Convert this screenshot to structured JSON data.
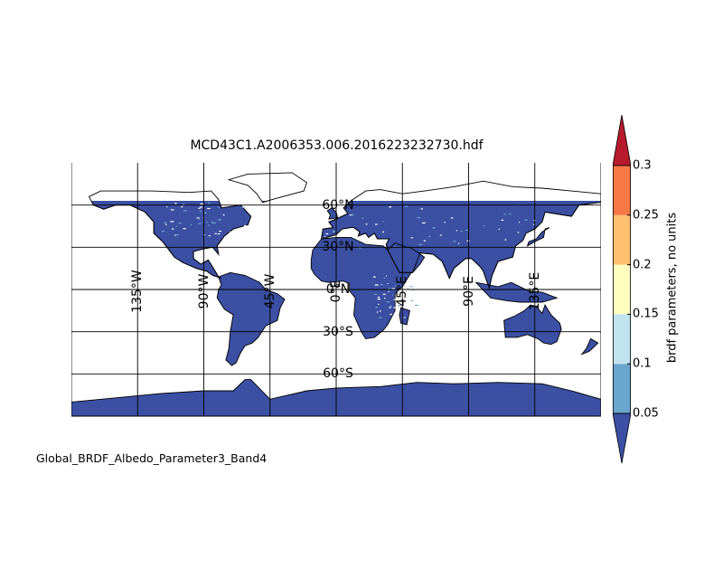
{
  "title": "MCD43C1.A2006353.006.2016223232730.hdf",
  "footer": "Global_BRDF_Albedo_Parameter3_Band4",
  "map": {
    "projection": "cylindrical",
    "lon_range": [
      -180,
      180
    ],
    "lat_range": [
      -90,
      90
    ],
    "land_fill_color": "#3b4fa3",
    "speckle_color": "#6fa6d0",
    "coastline_color": "#000000",
    "graticule_color": "#000000",
    "meridians": [
      {
        "lon": -135,
        "label": "135°W"
      },
      {
        "lon": -90,
        "label": "90°W"
      },
      {
        "lon": -45,
        "label": "45°W"
      },
      {
        "lon": 0,
        "label": "0°E"
      },
      {
        "lon": 45,
        "label": "45°E"
      },
      {
        "lon": 90,
        "label": "90°E"
      },
      {
        "lon": 135,
        "label": "135°E"
      }
    ],
    "parallels": [
      {
        "lat": 60,
        "label": "60°N"
      },
      {
        "lat": 30,
        "label": "30°N"
      },
      {
        "lat": 0,
        "label": "0°N"
      },
      {
        "lat": -30,
        "label": "30°S"
      },
      {
        "lat": -60,
        "label": "60°S"
      }
    ]
  },
  "colorbar": {
    "label": "brdf parameters, no units",
    "ticks": [
      "0.05",
      "0.1",
      "0.15",
      "0.2",
      "0.25",
      "0.3"
    ],
    "bins": [
      {
        "from": 0.05,
        "to": 0.1,
        "color": "#6aa5cd"
      },
      {
        "from": 0.1,
        "to": 0.15,
        "color": "#c1e3ee"
      },
      {
        "from": 0.15,
        "to": 0.2,
        "color": "#feffbf"
      },
      {
        "from": 0.2,
        "to": 0.25,
        "color": "#fdc171"
      },
      {
        "from": 0.25,
        "to": 0.3,
        "color": "#f67945"
      }
    ],
    "under_color": "#3b4fa3",
    "over_color": "#b61a2c",
    "extend": "both"
  }
}
